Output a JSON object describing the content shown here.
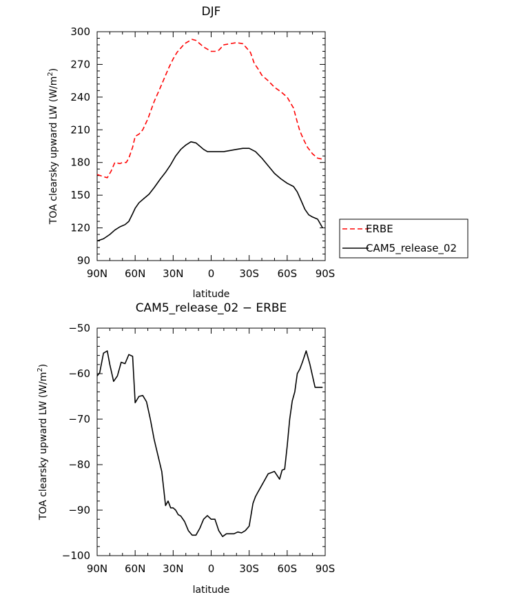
{
  "chart_data": [
    {
      "type": "line",
      "title": "DJF",
      "xlabel": "latitude",
      "ylabel": "TOA clearsky upward LW (W/m²)",
      "ylabel_main": "TOA clearsky upward LW (W/m",
      "ylabel_sup": "2",
      "ylabel_end": ")",
      "xlim": [
        -90,
        90
      ],
      "ylim": [
        90,
        300
      ],
      "xticks": [
        -90,
        -60,
        -30,
        0,
        30,
        60,
        90
      ],
      "xtick_labels": [
        "90N",
        "60N",
        "30N",
        "0",
        "30S",
        "60S",
        "90S"
      ],
      "yticks": [
        90,
        120,
        150,
        180,
        210,
        240,
        270,
        300
      ],
      "ytick_labels": [
        "90",
        "120",
        "150",
        "180",
        "210",
        "240",
        "270",
        "300"
      ],
      "legend": {
        "placement": "right",
        "entries": [
          "ERBE",
          "CAM5_release_02"
        ]
      },
      "series": [
        {
          "name": "ERBE",
          "color": "#ff0000",
          "dash": "dashed",
          "x": [
            -90,
            -85,
            -82,
            -79,
            -76,
            -72,
            -70,
            -67,
            -65,
            -62,
            -60,
            -57,
            -54,
            -50,
            -45,
            -40,
            -36,
            -33,
            -30,
            -27,
            -24,
            -21,
            -18,
            -15,
            -12,
            -9,
            -6,
            -3,
            0,
            3,
            6,
            10,
            15,
            20,
            25,
            28,
            31,
            34,
            37,
            40,
            45,
            50,
            55,
            60,
            65,
            68,
            70,
            73,
            76,
            80,
            84,
            88
          ],
          "y": [
            169,
            167,
            166,
            172,
            180,
            179,
            180,
            180,
            184,
            194,
            204,
            206,
            210,
            220,
            236,
            249,
            260,
            268,
            275,
            281,
            285,
            289,
            291,
            293,
            292,
            289,
            286,
            284,
            282,
            282,
            283,
            288,
            289,
            290,
            289,
            285,
            281,
            271,
            266,
            260,
            255,
            249,
            245,
            240,
            230,
            217,
            209,
            201,
            194,
            188,
            184,
            183
          ]
        },
        {
          "name": "CAM5_release_02",
          "color": "#000000",
          "dash": "solid",
          "x": [
            -90,
            -85,
            -80,
            -76,
            -72,
            -68,
            -65,
            -62,
            -60,
            -57,
            -53,
            -49,
            -45,
            -40,
            -36,
            -32,
            -28,
            -24,
            -20,
            -16,
            -12,
            -9,
            -6,
            -3,
            0,
            5,
            10,
            15,
            20,
            25,
            30,
            35,
            40,
            45,
            50,
            55,
            60,
            65,
            68,
            71,
            74,
            77,
            80,
            84,
            88
          ],
          "y": [
            108,
            110,
            114,
            118,
            121,
            123,
            126,
            133,
            138,
            143,
            147,
            151,
            157,
            165,
            171,
            178,
            186,
            192,
            196,
            199,
            198,
            195,
            192,
            190,
            190,
            190,
            190,
            191,
            192,
            193,
            193,
            190,
            184,
            177,
            170,
            165,
            161,
            158,
            153,
            145,
            137,
            132,
            130,
            128,
            120
          ]
        }
      ]
    },
    {
      "type": "line",
      "title": "CAM5_release_02 − ERBE",
      "xlabel": "latitude",
      "ylabel": "TOA clearsky upward LW (W/m²)",
      "ylabel_main": "TOA clearsky upward LW (W/m",
      "ylabel_sup": "2",
      "ylabel_end": ")",
      "xlim": [
        -90,
        90
      ],
      "ylim": [
        -100,
        -50
      ],
      "xticks": [
        -90,
        -60,
        -30,
        0,
        30,
        60,
        90
      ],
      "xtick_labels": [
        "90N",
        "60N",
        "30N",
        "0",
        "30S",
        "60S",
        "90S"
      ],
      "yticks": [
        -100,
        -90,
        -80,
        -70,
        -60,
        -50
      ],
      "ytick_labels": [
        "−100",
        "−90",
        "−80",
        "−70",
        "−60",
        "−50"
      ],
      "series": [
        {
          "name": "CAM5_release_02 − ERBE",
          "color": "#000000",
          "dash": "solid",
          "x": [
            -90,
            -88,
            -85,
            -82,
            -80,
            -77,
            -74,
            -71,
            -68,
            -65,
            -62,
            -60,
            -57,
            -54,
            -51,
            -48,
            -45,
            -42,
            -39,
            -36,
            -34,
            -32,
            -30,
            -28,
            -26,
            -24,
            -21,
            -18,
            -15,
            -12,
            -9,
            -6,
            -3,
            0,
            3,
            6,
            9,
            12,
            15,
            18,
            21,
            24,
            27,
            30,
            33,
            35,
            37,
            40,
            45,
            50,
            54,
            56,
            58,
            60,
            62,
            64,
            66,
            68,
            70,
            72,
            75,
            78,
            82,
            85,
            88
          ],
          "y": [
            -60.5,
            -59.8,
            -55.5,
            -55,
            -58,
            -61.7,
            -60.5,
            -57.5,
            -57.8,
            -55.8,
            -56.2,
            -66.4,
            -65,
            -64.8,
            -66.2,
            -70,
            -74.5,
            -78,
            -81.5,
            -89,
            -88,
            -89.5,
            -89.5,
            -90,
            -91,
            -91.3,
            -92.5,
            -94.5,
            -95.5,
            -95.5,
            -94,
            -92,
            -91.2,
            -92,
            -92,
            -94.5,
            -95.8,
            -95.2,
            -95.2,
            -95.2,
            -94.8,
            -95,
            -94.5,
            -93.5,
            -88.5,
            -87,
            -86,
            -84.5,
            -82,
            -81.5,
            -83.2,
            -81.2,
            -81,
            -76,
            -70,
            -66,
            -64,
            -60,
            -59,
            -57.5,
            -55,
            -58,
            -63,
            -63,
            -63
          ]
        }
      ]
    }
  ]
}
